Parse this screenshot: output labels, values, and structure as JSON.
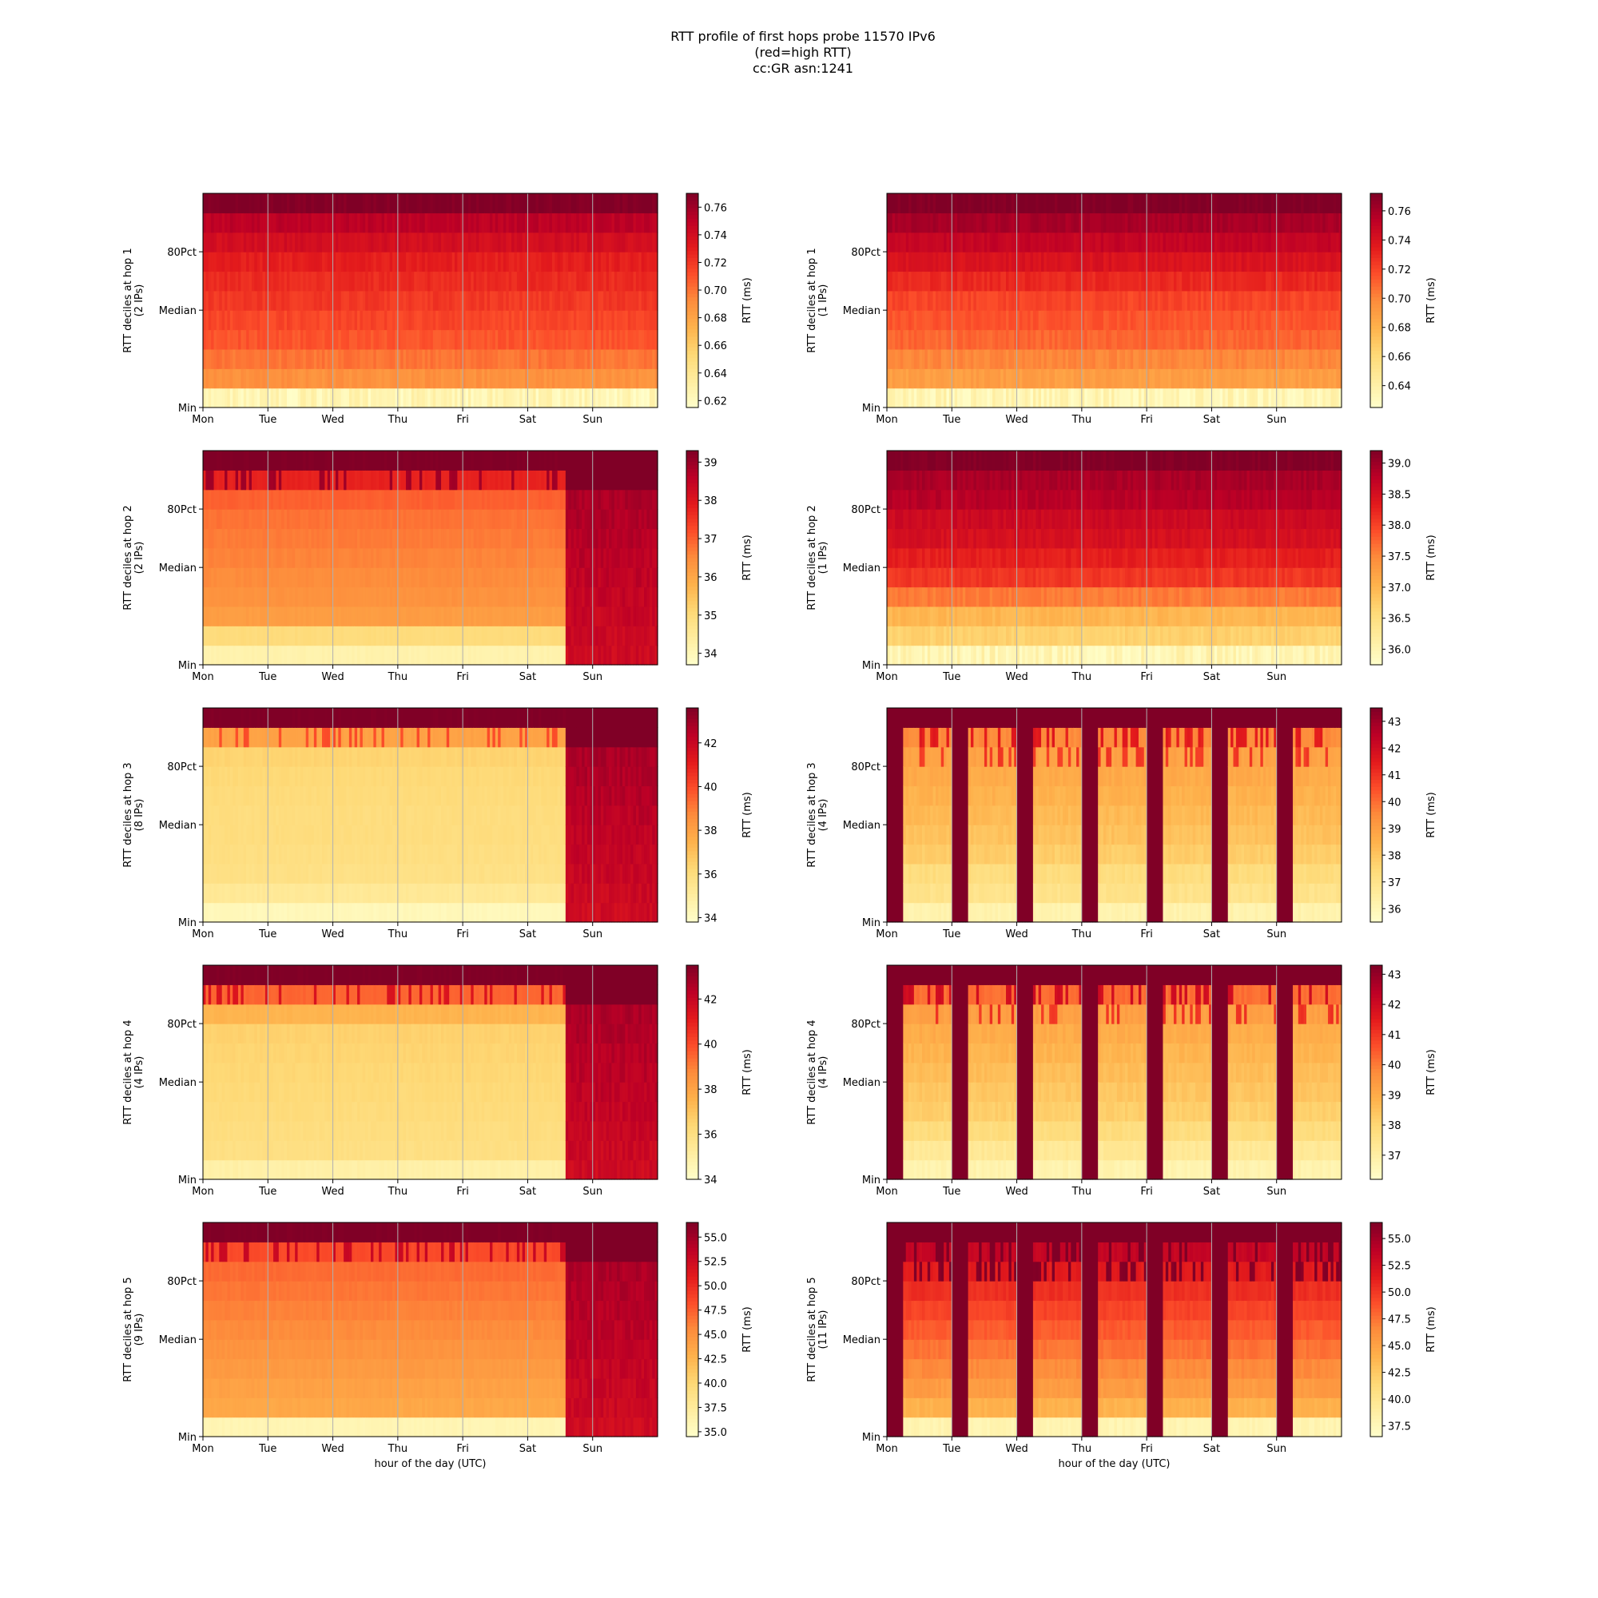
{
  "title_lines": [
    "RTT profile of first hops probe 11570 IPv6",
    "(red=high RTT)",
    "cc:GR asn:1241"
  ],
  "colors": {
    "colormap": "YlOrRd",
    "stops": [
      "#ffffcc",
      "#ffeda0",
      "#fed976",
      "#feb24c",
      "#fd8d3c",
      "#fc4e2a",
      "#e31a1c",
      "#bd0026",
      "#800026"
    ],
    "gridline": "#b0b0b0"
  },
  "chart_data": [
    {
      "type": "heatmap",
      "hop": 1,
      "column": "left",
      "ylabel": "RTT deciles at hop 1",
      "ylabel_sub": "(2 IPs)",
      "x_ticks": [
        "Mon",
        "Tue",
        "Wed",
        "Thu",
        "Fri",
        "Sat",
        "Sun"
      ],
      "y_ticks": [
        "Min",
        "Median",
        "80Pct"
      ],
      "colorbar_label": "RTT (ms)",
      "colorbar_ticks": [
        "0.62",
        "0.64",
        "0.66",
        "0.68",
        "0.70",
        "0.72",
        "0.74",
        "0.76"
      ],
      "colorbar_range": [
        0.615,
        0.77
      ],
      "pattern": "gradient",
      "decile_values_ms": [
        0.625,
        0.69,
        0.7,
        0.71,
        0.715,
        0.72,
        0.725,
        0.73,
        0.74,
        0.75,
        0.77
      ]
    },
    {
      "type": "heatmap",
      "hop": 1,
      "column": "right",
      "ylabel": "RTT deciles at hop 1",
      "ylabel_sub": "(1 IPs)",
      "x_ticks": [
        "Mon",
        "Tue",
        "Wed",
        "Thu",
        "Fri",
        "Sat",
        "Sun"
      ],
      "y_ticks": [
        "Min",
        "Median",
        "80Pct"
      ],
      "colorbar_label": "RTT (ms)",
      "colorbar_ticks": [
        "0.64",
        "0.66",
        "0.68",
        "0.70",
        "0.72",
        "0.74",
        "0.76"
      ],
      "colorbar_range": [
        0.625,
        0.772
      ],
      "pattern": "gradient",
      "decile_values_ms": [
        0.635,
        0.69,
        0.7,
        0.71,
        0.715,
        0.72,
        0.73,
        0.74,
        0.75,
        0.76,
        0.772
      ]
    },
    {
      "type": "heatmap",
      "hop": 2,
      "column": "left",
      "ylabel": "RTT deciles at hop 2",
      "ylabel_sub": "(2 IPs)",
      "x_ticks": [
        "Mon",
        "Tue",
        "Wed",
        "Thu",
        "Fri",
        "Sat",
        "Sun"
      ],
      "y_ticks": [
        "Min",
        "Median",
        "80Pct"
      ],
      "colorbar_label": "RTT (ms)",
      "colorbar_ticks": [
        "34",
        "35",
        "36",
        "37",
        "38",
        "39"
      ],
      "colorbar_range": [
        33.7,
        39.3
      ],
      "pattern": "step",
      "step_day": 5.58,
      "decile_values_ms": [
        34.2,
        35.0,
        36.2,
        36.4,
        36.5,
        36.6,
        36.7,
        36.8,
        37.0,
        37.8,
        39.3
      ]
    },
    {
      "type": "heatmap",
      "hop": 2,
      "column": "right",
      "ylabel": "RTT deciles at hop 2",
      "ylabel_sub": "(1 IPs)",
      "x_ticks": [
        "Mon",
        "Tue",
        "Wed",
        "Thu",
        "Fri",
        "Sat",
        "Sun"
      ],
      "y_ticks": [
        "Min",
        "Median",
        "80Pct"
      ],
      "colorbar_label": "RTT (ms)",
      "colorbar_ticks": [
        "36.0",
        "36.5",
        "37.0",
        "37.5",
        "38.0",
        "38.5",
        "39.0"
      ],
      "colorbar_range": [
        35.75,
        39.2
      ],
      "pattern": "gradient",
      "decile_values_ms": [
        36.0,
        36.7,
        37.0,
        37.6,
        38.1,
        38.3,
        38.5,
        38.6,
        38.8,
        38.9,
        39.2
      ]
    },
    {
      "type": "heatmap",
      "hop": 3,
      "column": "left",
      "ylabel": "RTT deciles at hop 3",
      "ylabel_sub": "(8 IPs)",
      "x_ticks": [
        "Mon",
        "Tue",
        "Wed",
        "Thu",
        "Fri",
        "Sat",
        "Sun"
      ],
      "y_ticks": [
        "Min",
        "Median",
        "80Pct"
      ],
      "colorbar_label": "RTT (ms)",
      "colorbar_ticks": [
        "34",
        "36",
        "38",
        "40",
        "42"
      ],
      "colorbar_range": [
        33.8,
        43.6
      ],
      "pattern": "step",
      "step_day": 5.58,
      "decile_values_ms": [
        34.3,
        35.3,
        35.8,
        35.9,
        36.0,
        36.0,
        36.1,
        36.2,
        36.4,
        38.0,
        43.6
      ]
    },
    {
      "type": "heatmap",
      "hop": 3,
      "column": "right",
      "ylabel": "RTT deciles at hop 3",
      "ylabel_sub": "(4 IPs)",
      "x_ticks": [
        "Mon",
        "Tue",
        "Wed",
        "Thu",
        "Fri",
        "Sat",
        "Sun"
      ],
      "y_ticks": [
        "Min",
        "Median",
        "80Pct"
      ],
      "colorbar_label": "RTT (ms)",
      "colorbar_ticks": [
        "36",
        "37",
        "38",
        "39",
        "40",
        "41",
        "42",
        "43"
      ],
      "colorbar_range": [
        35.5,
        43.5
      ],
      "pattern": "nightly",
      "decile_values_ms": [
        36.2,
        37.0,
        37.3,
        37.8,
        38.1,
        38.3,
        38.5,
        38.7,
        38.9,
        39.5,
        43.5
      ]
    },
    {
      "type": "heatmap",
      "hop": 4,
      "column": "left",
      "ylabel": "RTT deciles at hop 4",
      "ylabel_sub": "(4 IPs)",
      "x_ticks": [
        "Mon",
        "Tue",
        "Wed",
        "Thu",
        "Fri",
        "Sat",
        "Sun"
      ],
      "y_ticks": [
        "Min",
        "Median",
        "80Pct"
      ],
      "colorbar_label": "RTT (ms)",
      "colorbar_ticks": [
        "34",
        "36",
        "38",
        "40",
        "42"
      ],
      "colorbar_range": [
        34.0,
        43.5
      ],
      "pattern": "step",
      "step_day": 5.58,
      "decile_values_ms": [
        35.0,
        36.0,
        36.1,
        36.2,
        36.3,
        36.4,
        36.5,
        36.6,
        37.5,
        39.5,
        43.5
      ]
    },
    {
      "type": "heatmap",
      "hop": 4,
      "column": "right",
      "ylabel": "RTT deciles at hop 4",
      "ylabel_sub": "(4 IPs)",
      "x_ticks": [
        "Mon",
        "Tue",
        "Wed",
        "Thu",
        "Fri",
        "Sat",
        "Sun"
      ],
      "y_ticks": [
        "Min",
        "Median",
        "80Pct"
      ],
      "colorbar_label": "RTT (ms)",
      "colorbar_ticks": [
        "37",
        "38",
        "39",
        "40",
        "41",
        "42",
        "43"
      ],
      "colorbar_range": [
        36.2,
        43.3
      ],
      "pattern": "nightly",
      "decile_values_ms": [
        36.8,
        37.3,
        37.8,
        38.2,
        38.4,
        38.6,
        38.8,
        39.0,
        39.3,
        40.2,
        43.3
      ]
    },
    {
      "type": "heatmap",
      "hop": 5,
      "column": "left",
      "ylabel": "RTT deciles at hop 5",
      "ylabel_sub": "(9 IPs)",
      "xlabel": "hour of the day (UTC)",
      "x_ticks": [
        "Mon",
        "Tue",
        "Wed",
        "Thu",
        "Fri",
        "Sat",
        "Sun"
      ],
      "y_ticks": [
        "Min",
        "Median",
        "80Pct"
      ],
      "colorbar_label": "RTT (ms)",
      "colorbar_ticks": [
        "35.0",
        "37.5",
        "40.0",
        "42.5",
        "45.0",
        "47.5",
        "50.0",
        "52.5",
        "55.0"
      ],
      "colorbar_range": [
        34.5,
        56.5
      ],
      "pattern": "step",
      "step_day": 5.58,
      "decile_values_ms": [
        36.0,
        43.5,
        44.0,
        44.5,
        45.0,
        45.5,
        46.0,
        46.5,
        47.0,
        48.5,
        56.5
      ]
    },
    {
      "type": "heatmap",
      "hop": 5,
      "column": "right",
      "ylabel": "RTT deciles at hop 5",
      "ylabel_sub": "(11 IPs)",
      "xlabel": "hour of the day (UTC)",
      "x_ticks": [
        "Mon",
        "Tue",
        "Wed",
        "Thu",
        "Fri",
        "Sat",
        "Sun"
      ],
      "y_ticks": [
        "Min",
        "Median",
        "80Pct"
      ],
      "colorbar_label": "RTT (ms)",
      "colorbar_ticks": [
        "37.5",
        "40.0",
        "42.5",
        "45.0",
        "47.5",
        "50.0",
        "52.5",
        "55.0"
      ],
      "colorbar_range": [
        36.5,
        56.5
      ],
      "pattern": "nightly",
      "decile_values_ms": [
        38.0,
        44.0,
        45.5,
        46.5,
        47.5,
        48.5,
        49.5,
        50.5,
        51.5,
        53.5,
        56.5
      ]
    }
  ]
}
